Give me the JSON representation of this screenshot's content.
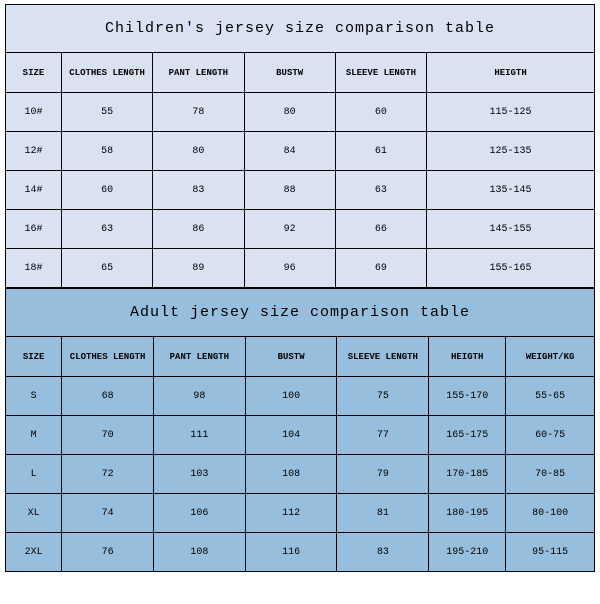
{
  "children_table": {
    "type": "table",
    "title": "Children's jersey size comparison table",
    "background_color": "#dae2f2",
    "border_color": "#000000",
    "title_fontsize": 15,
    "header_fontsize": 9,
    "cell_fontsize": 10,
    "columns": [
      "SIZE",
      "CLOTHES LENGTH",
      "PANT LENGTH",
      "BUSTW",
      "SLEEVE LENGTH",
      "HEIGTH"
    ],
    "rows": [
      {
        "size": "10#",
        "clothes_length": "55",
        "pant_length": "78",
        "bustw": "80",
        "sleeve_length": "60",
        "heigth": "115-125"
      },
      {
        "size": "12#",
        "clothes_length": "58",
        "pant_length": "80",
        "bustw": "84",
        "sleeve_length": "61",
        "heigth": "125-135"
      },
      {
        "size": "14#",
        "clothes_length": "60",
        "pant_length": "83",
        "bustw": "88",
        "sleeve_length": "63",
        "heigth": "135-145"
      },
      {
        "size": "16#",
        "clothes_length": "63",
        "pant_length": "86",
        "bustw": "92",
        "sleeve_length": "66",
        "heigth": "145-155"
      },
      {
        "size": "18#",
        "clothes_length": "65",
        "pant_length": "89",
        "bustw": "96",
        "sleeve_length": "69",
        "heigth": "155-165"
      }
    ]
  },
  "adult_table": {
    "type": "table",
    "title": "Adult jersey size comparison table",
    "background_color": "#97bfdd",
    "border_color": "#000000",
    "title_fontsize": 15,
    "header_fontsize": 9,
    "cell_fontsize": 10,
    "columns": [
      "SIZE",
      "CLOTHES LENGTH",
      "PANT LENGTH",
      "BUSTW",
      "SLEEVE LENGTH",
      "HEIGTH",
      "WEIGHT/KG"
    ],
    "rows": [
      {
        "size": "S",
        "clothes_length": "68",
        "pant_length": "98",
        "bustw": "100",
        "sleeve_length": "75",
        "heigth": "155-170",
        "weight": "55-65"
      },
      {
        "size": "M",
        "clothes_length": "70",
        "pant_length": "111",
        "bustw": "104",
        "sleeve_length": "77",
        "heigth": "165-175",
        "weight": "60-75"
      },
      {
        "size": "L",
        "clothes_length": "72",
        "pant_length": "103",
        "bustw": "108",
        "sleeve_length": "79",
        "heigth": "170-185",
        "weight": "70-85"
      },
      {
        "size": "XL",
        "clothes_length": "74",
        "pant_length": "106",
        "bustw": "112",
        "sleeve_length": "81",
        "heigth": "180-195",
        "weight": "80-100"
      },
      {
        "size": "2XL",
        "clothes_length": "76",
        "pant_length": "108",
        "bustw": "116",
        "sleeve_length": "83",
        "heigth": "195-210",
        "weight": "95-115"
      }
    ]
  }
}
